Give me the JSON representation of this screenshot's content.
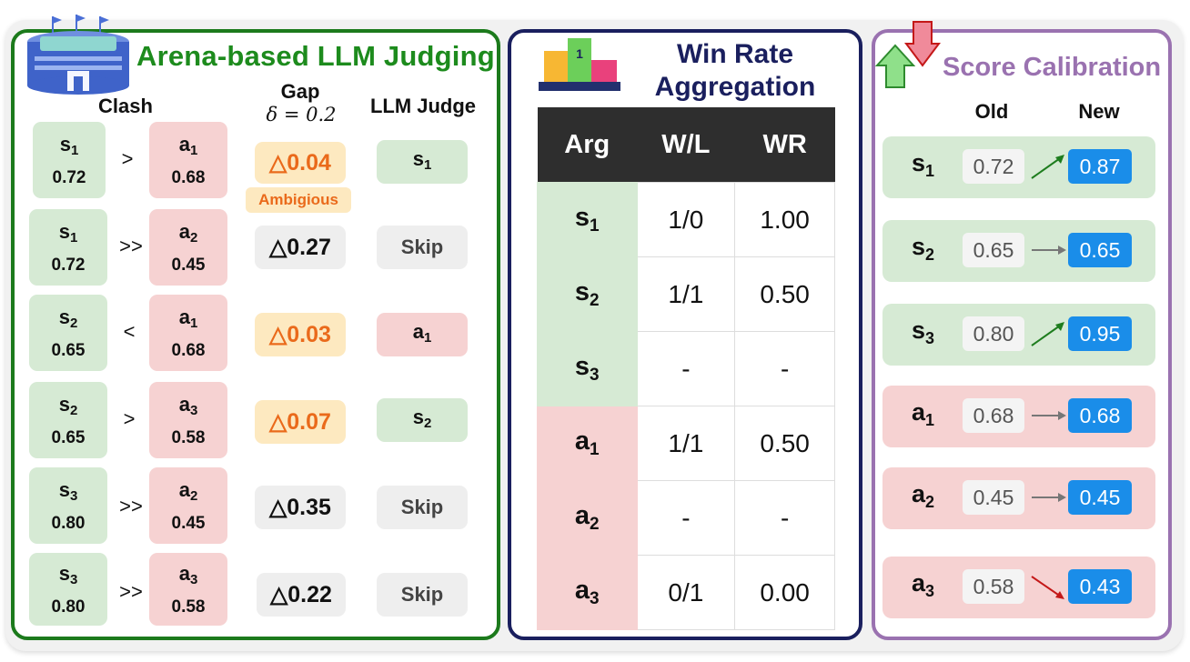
{
  "arena": {
    "title": "Arena-based LLM Judging",
    "header_clash": "Clash",
    "header_gap": "Gap",
    "header_delta": "δ = 0.2",
    "header_judge": "LLM Judge",
    "ambiguous_label": "Ambigious",
    "rows": [
      {
        "left_name": "s",
        "left_sub": "1",
        "left_val": "0.72",
        "relation": ">",
        "right_name": "a",
        "right_sub": "1",
        "right_val": "0.68",
        "gap": "△0.04",
        "judge_name": "s",
        "judge_sub": "1",
        "judge_text": ""
      },
      {
        "left_name": "s",
        "left_sub": "1",
        "left_val": "0.72",
        "relation": ">>",
        "right_name": "a",
        "right_sub": "2",
        "right_val": "0.45",
        "gap": "△0.27",
        "judge_name": "",
        "judge_sub": "",
        "judge_text": "Skip"
      },
      {
        "left_name": "s",
        "left_sub": "2",
        "left_val": "0.65",
        "relation": "<",
        "right_name": "a",
        "right_sub": "1",
        "right_val": "0.68",
        "gap": "△0.03",
        "judge_name": "a",
        "judge_sub": "1",
        "judge_text": ""
      },
      {
        "left_name": "s",
        "left_sub": "2",
        "left_val": "0.65",
        "relation": ">",
        "right_name": "a",
        "right_sub": "3",
        "right_val": "0.58",
        "gap": "△0.07",
        "judge_name": "s",
        "judge_sub": "2",
        "judge_text": ""
      },
      {
        "left_name": "s",
        "left_sub": "3",
        "left_val": "0.80",
        "relation": ">>",
        "right_name": "a",
        "right_sub": "2",
        "right_val": "0.45",
        "gap": "△0.35",
        "judge_name": "",
        "judge_sub": "",
        "judge_text": "Skip"
      },
      {
        "left_name": "s",
        "left_sub": "3",
        "left_val": "0.80",
        "relation": ">>",
        "right_name": "a",
        "right_sub": "3",
        "right_val": "0.58",
        "gap": "△0.22",
        "judge_name": "",
        "judge_sub": "",
        "judge_text": "Skip"
      }
    ]
  },
  "winrate": {
    "title_line1": "Win Rate",
    "title_line2": "Aggregation",
    "podium_label": "1",
    "columns": [
      "Arg",
      "W/L",
      "WR"
    ],
    "rows": [
      {
        "name": "s",
        "sub": "1",
        "wl": "1/0",
        "wr": "1.00"
      },
      {
        "name": "s",
        "sub": "2",
        "wl": "1/1",
        "wr": "0.50"
      },
      {
        "name": "s",
        "sub": "3",
        "wl": "-",
        "wr": "-"
      },
      {
        "name": "a",
        "sub": "1",
        "wl": "1/1",
        "wr": "0.50"
      },
      {
        "name": "a",
        "sub": "2",
        "wl": "-",
        "wr": "-"
      },
      {
        "name": "a",
        "sub": "3",
        "wl": "0/1",
        "wr": "0.00"
      }
    ]
  },
  "calibration": {
    "title": "Score Calibration",
    "header_old": "Old",
    "header_new": "New",
    "rows": [
      {
        "name": "s",
        "sub": "1",
        "old": "0.72",
        "new": "0.87",
        "trend": "up"
      },
      {
        "name": "s",
        "sub": "2",
        "old": "0.65",
        "new": "0.65",
        "trend": "flat"
      },
      {
        "name": "s",
        "sub": "3",
        "old": "0.80",
        "new": "0.95",
        "trend": "up"
      },
      {
        "name": "a",
        "sub": "1",
        "old": "0.68",
        "new": "0.68",
        "trend": "flat"
      },
      {
        "name": "a",
        "sub": "2",
        "old": "0.45",
        "new": "0.45",
        "trend": "flat"
      },
      {
        "name": "a",
        "sub": "3",
        "old": "0.58",
        "new": "0.43",
        "trend": "down"
      }
    ]
  },
  "colors": {
    "green_panel": "#1c7a1c",
    "navy_panel": "#1a1f5e",
    "purple_panel": "#9a72b0",
    "up_arrow": "#1e7d1e",
    "down_arrow": "#c41818",
    "flat_arrow": "#777777",
    "new_value_bg": "#1a8de9"
  },
  "icons": [
    "stadium-icon",
    "podium-icon",
    "up-arrow-icon",
    "down-arrow-icon"
  ]
}
